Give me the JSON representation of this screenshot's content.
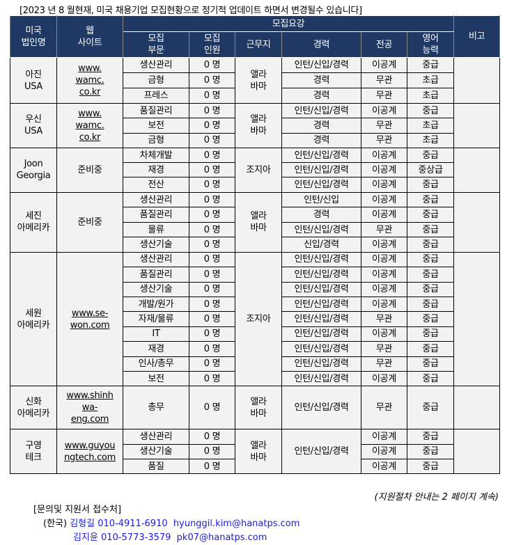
{
  "title": "[2023 년 8 월현재, 미국 채용기업 모집현황으로 정기적 업데이트 하면서 변경될수 있습니다]",
  "headers": {
    "company": [
      "미국",
      "법인명"
    ],
    "website": [
      "웹",
      "사이트"
    ],
    "requirements": "모집요강",
    "dept": [
      "모집",
      "부문"
    ],
    "count": [
      "모집",
      "인원"
    ],
    "location": "근무지",
    "experience": "경력",
    "major": "전공",
    "english": [
      "영어",
      "능력"
    ],
    "note": "비고"
  },
  "companies": [
    {
      "name": [
        "아진",
        "USA"
      ],
      "website": [
        "www.",
        "wamc.",
        "co.kr"
      ],
      "location": [
        "앨라",
        "바마"
      ],
      "note": "",
      "rows": [
        {
          "dept": "생산관리",
          "count": "0 명",
          "exp": "인턴/신입/경력",
          "major": "이공계",
          "eng": "중급"
        },
        {
          "dept": "금형",
          "count": "0 명",
          "exp": "경력",
          "major": "무관",
          "eng": "초급"
        },
        {
          "dept": "프레스",
          "count": "0 명",
          "exp": "경력",
          "major": "무관",
          "eng": "초급"
        }
      ]
    },
    {
      "name": [
        "우신",
        "USA"
      ],
      "website": [
        "www.",
        "wamc.",
        "co.kr"
      ],
      "location": [
        "앨라",
        "바마"
      ],
      "note": "",
      "rows": [
        {
          "dept": "품질관리",
          "count": "0 명",
          "exp": "인턴/신입/경력",
          "major": "이공계",
          "eng": "중급"
        },
        {
          "dept": "보전",
          "count": "0 명",
          "exp": "경력",
          "major": "무관",
          "eng": "초급"
        },
        {
          "dept": "금형",
          "count": "0 명",
          "exp": "경력",
          "major": "무관",
          "eng": "초급"
        }
      ]
    },
    {
      "name": [
        "Joon",
        "Georgia"
      ],
      "website": [
        "준비중"
      ],
      "location": [
        "조지아"
      ],
      "note": "",
      "rows": [
        {
          "dept": "차체개발",
          "count": "0 명",
          "exp": "인턴/신입/경력",
          "major": "이공계",
          "eng": "중급"
        },
        {
          "dept": "재경",
          "count": "0 명",
          "exp": "인턴/신입/경력",
          "major": "이공계",
          "eng": "중상급"
        },
        {
          "dept": "전산",
          "count": "0 명",
          "exp": "인턴/신입/경력",
          "major": "이공계",
          "eng": "중급"
        }
      ]
    },
    {
      "name": [
        "세진",
        "아메리카"
      ],
      "website": [
        "준비중"
      ],
      "location": [
        "앨라",
        "바마"
      ],
      "note": "",
      "rows": [
        {
          "dept": "생산관리",
          "count": "0 명",
          "exp": "인턴/신입",
          "major": "이공계",
          "eng": "중급"
        },
        {
          "dept": "품질관리",
          "count": "0 명",
          "exp": "경력",
          "major": "이공계",
          "eng": "중급"
        },
        {
          "dept": "물류",
          "count": "0 명",
          "exp": "인턴/신입/경력",
          "major": "무관",
          "eng": "중급"
        },
        {
          "dept": "생산기술",
          "count": "0 명",
          "exp": "신입/경력",
          "major": "이공계",
          "eng": "중급"
        }
      ]
    },
    {
      "name": [
        "세원",
        "아메리카"
      ],
      "website": [
        "www.se-",
        "won.com"
      ],
      "location": [
        "조지아"
      ],
      "note": "",
      "rows": [
        {
          "dept": "생산관리",
          "count": "0 명",
          "exp": "인턴/신입/경력",
          "major": "이공계",
          "eng": "중급"
        },
        {
          "dept": "품질관리",
          "count": "0 명",
          "exp": "인턴/신입/경력",
          "major": "이공계",
          "eng": "중급"
        },
        {
          "dept": "생산기술",
          "count": "0 명",
          "exp": "인턴/신입/경력",
          "major": "이공계",
          "eng": "중급"
        },
        {
          "dept": "개발/원가",
          "count": "0 명",
          "exp": "인턴/신입/경력",
          "major": "이공계",
          "eng": "중급"
        },
        {
          "dept": "자재/물류",
          "count": "0 명",
          "exp": "인턴/신입/경력",
          "major": "무관",
          "eng": "중급"
        },
        {
          "dept": "IT",
          "count": "0 명",
          "exp": "인턴/신입/경력",
          "major": "이공계",
          "eng": "중급"
        },
        {
          "dept": "재경",
          "count": "0 명",
          "exp": "인턴/신입/경력",
          "major": "무관",
          "eng": "중급"
        },
        {
          "dept": "인사/총무",
          "count": "0 명",
          "exp": "인턴/신입/경력",
          "major": "무관",
          "eng": "중급"
        },
        {
          "dept": "보전",
          "count": "0 명",
          "exp": "인턴/신입/경력",
          "major": "이공계",
          "eng": "중급"
        }
      ]
    },
    {
      "name": [
        "신화",
        "아메리카"
      ],
      "website": [
        "www.shinh",
        "wa-",
        "eng.com"
      ],
      "location": [
        "앨라",
        "바마"
      ],
      "note": "",
      "rows": [
        {
          "dept": "총무",
          "count": "0 명",
          "exp": "인턴/신입/경력",
          "major": "무관",
          "eng": "중급"
        }
      ]
    },
    {
      "name": [
        "구영",
        "테크"
      ],
      "website": [
        "www.guyou",
        "ngtech.com"
      ],
      "location": [
        "앨라",
        "바마"
      ],
      "note": "",
      "merged_exp": "인턴/신입/경력",
      "rows": [
        {
          "dept": "생산관리",
          "count": "0 명",
          "major": "이공계",
          "eng": "중급"
        },
        {
          "dept": "생산기술",
          "count": "0 명",
          "major": "이공계",
          "eng": "중급"
        },
        {
          "dept": "품질",
          "count": "0 명",
          "major": "이공계",
          "eng": "중급"
        }
      ]
    }
  ],
  "footer": {
    "continued": "(지원절차 안내는 2 페이지 계속)",
    "contact_title": "[문의및 지원서 접수처]",
    "region": "(한국)",
    "contacts": [
      {
        "name": "김형길",
        "phone": "010-4911-6910",
        "email": "hyunggil.kim@hanatps.com"
      },
      {
        "name": "김지윤",
        "phone": "010-5773-3579",
        "email": "pk07@hanatps.com"
      }
    ]
  }
}
